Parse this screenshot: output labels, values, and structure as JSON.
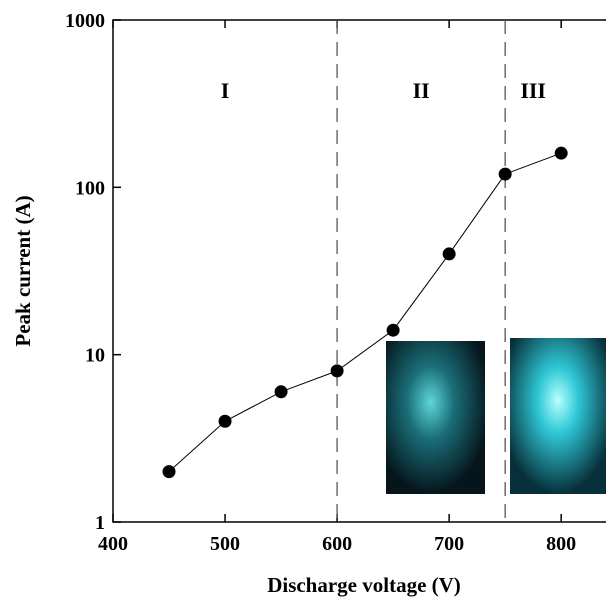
{
  "chart_data": {
    "type": "line",
    "xlabel": "Discharge voltage (V)",
    "ylabel": "Peak current (A)",
    "x": [
      450,
      500,
      550,
      600,
      650,
      700,
      750,
      800
    ],
    "series": [
      {
        "color": "#000000",
        "values": [
          2,
          4,
          6,
          8,
          14,
          40,
          120,
          160
        ]
      }
    ],
    "xlim": [
      400,
      840
    ],
    "ylim": [
      1,
      1000
    ],
    "log_y": true,
    "xticks": [
      400,
      500,
      600,
      700,
      800
    ],
    "yticks": [
      1,
      10,
      100,
      1000
    ],
    "dividers": [
      600,
      750
    ],
    "regions": [
      "I",
      "II",
      "III"
    ]
  }
}
